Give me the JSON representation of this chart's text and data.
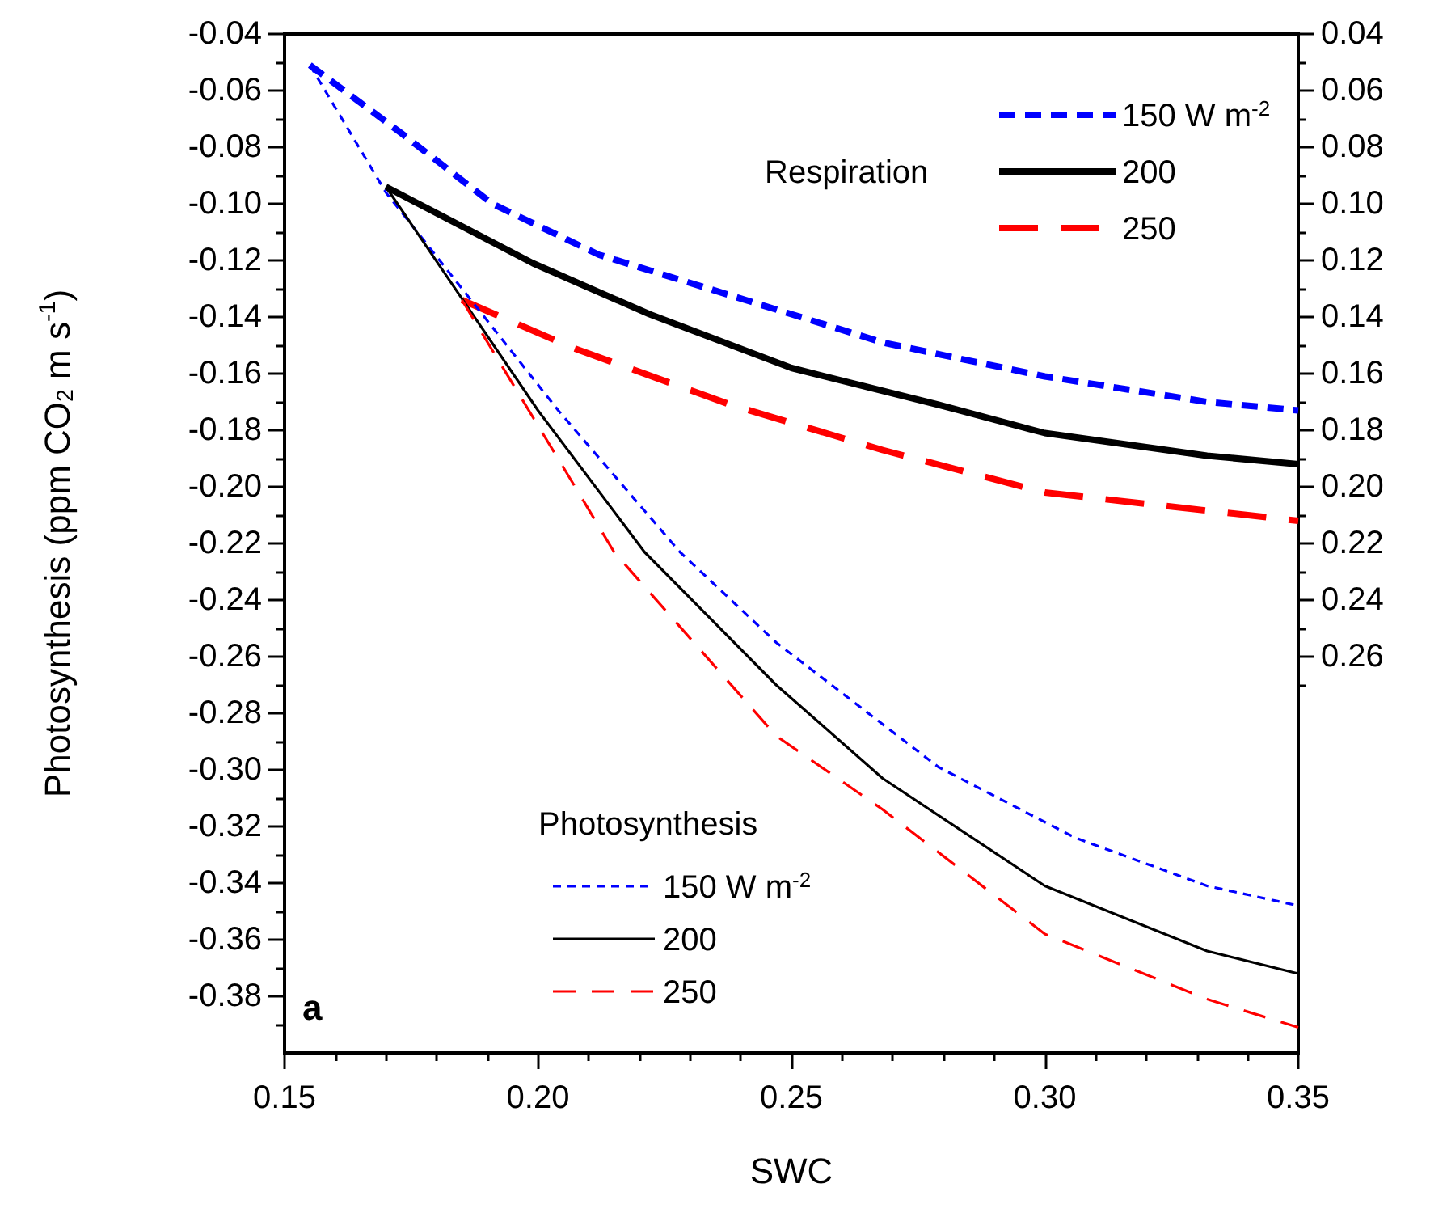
{
  "chart_data": {
    "type": "line",
    "xlabel": "SWC",
    "ylabel": "Photosynthesis (ppm CO$_{2}$ m s$^{-1}$)",
    "legend": "right",
    "marker": "none",
    "xlim": [
      0.15,
      0.35
    ],
    "xticks": [
      {
        "value": 0.15,
        "label": "0.15"
      },
      {
        "value": 0.16,
        "label": null
      },
      {
        "value": 0.17,
        "label": null
      },
      {
        "value": 0.18,
        "label": null
      },
      {
        "value": 0.19,
        "label": null
      },
      {
        "value": 0.2,
        "label": "0.20"
      },
      {
        "value": 0.21,
        "label": null
      },
      {
        "value": 0.22,
        "label": null
      },
      {
        "value": 0.23,
        "label": null
      },
      {
        "value": 0.24,
        "label": null
      },
      {
        "value": 0.25,
        "label": "0.25"
      },
      {
        "value": 0.26,
        "label": null
      },
      {
        "value": 0.27,
        "label": null
      },
      {
        "value": 0.28,
        "label": null
      },
      {
        "value": 0.29,
        "label": null
      },
      {
        "value": 0.3,
        "label": "0.30"
      },
      {
        "value": 0.31,
        "label": null
      },
      {
        "value": 0.32,
        "label": null
      },
      {
        "value": 0.33,
        "label": null
      },
      {
        "value": 0.34,
        "label": null
      },
      {
        "value": 0.35,
        "label": "0.35"
      }
    ],
    "ylim": [
      -0.4,
      -0.04
    ],
    "yticks": [
      {
        "value": -0.04,
        "label": "-0.04"
      },
      {
        "value": -0.05,
        "label": null
      },
      {
        "value": -0.06,
        "label": "-0.06"
      },
      {
        "value": -0.07,
        "label": null
      },
      {
        "value": -0.08,
        "label": "-0.08"
      },
      {
        "value": -0.09,
        "label": null
      },
      {
        "value": -0.1,
        "label": "-0.10"
      },
      {
        "value": -0.11,
        "label": null
      },
      {
        "value": -0.12,
        "label": "-0.12"
      },
      {
        "value": -0.13,
        "label": null
      },
      {
        "value": -0.14,
        "label": "-0.14"
      },
      {
        "value": -0.15,
        "label": null
      },
      {
        "value": -0.16,
        "label": "-0.16"
      },
      {
        "value": -0.17,
        "label": null
      },
      {
        "value": -0.18,
        "label": "-0.18"
      },
      {
        "value": -0.19,
        "label": null
      },
      {
        "value": -0.2,
        "label": "-0.20"
      },
      {
        "value": -0.21,
        "label": null
      },
      {
        "value": -0.22,
        "label": "-0.22"
      },
      {
        "value": -0.23,
        "label": null
      },
      {
        "value": -0.24,
        "label": "-0.24"
      },
      {
        "value": -0.25,
        "label": null
      },
      {
        "value": -0.26,
        "label": "-0.26"
      },
      {
        "value": -0.27,
        "label": null
      },
      {
        "value": -0.28,
        "label": "-0.28"
      },
      {
        "value": -0.29,
        "label": null
      },
      {
        "value": -0.3,
        "label": "-0.30"
      },
      {
        "value": -0.31,
        "label": null
      },
      {
        "value": -0.32,
        "label": "-0.32"
      },
      {
        "value": -0.33,
        "label": null
      },
      {
        "value": -0.34,
        "label": "-0.34"
      },
      {
        "value": -0.35,
        "label": null
      },
      {
        "value": -0.36,
        "label": "-0.36"
      },
      {
        "value": -0.37,
        "label": null
      },
      {
        "value": -0.38,
        "label": "-0.38"
      },
      {
        "value": -0.39,
        "label": null
      }
    ],
    "y2lim": [
      0.4,
      0.04
    ],
    "y2ticks": [
      {
        "value": 0.04,
        "label": "0.04"
      },
      {
        "value": 0.05,
        "label": null
      },
      {
        "value": 0.06,
        "label": "0.06"
      },
      {
        "value": 0.07,
        "label": null
      },
      {
        "value": 0.08,
        "label": "0.08"
      },
      {
        "value": 0.09,
        "label": null
      },
      {
        "value": 0.1,
        "label": "0.10"
      },
      {
        "value": 0.11,
        "label": null
      },
      {
        "value": 0.12,
        "label": "0.12"
      },
      {
        "value": 0.13,
        "label": null
      },
      {
        "value": 0.14,
        "label": "0.14"
      },
      {
        "value": 0.15,
        "label": null
      },
      {
        "value": 0.16,
        "label": "0.16"
      },
      {
        "value": 0.17,
        "label": null
      },
      {
        "value": 0.18,
        "label": "0.18"
      },
      {
        "value": 0.19,
        "label": null
      },
      {
        "value": 0.2,
        "label": "0.20"
      },
      {
        "value": 0.21,
        "label": null
      },
      {
        "value": 0.22,
        "label": "0.22"
      },
      {
        "value": 0.23,
        "label": null
      },
      {
        "value": 0.24,
        "label": "0.24"
      },
      {
        "value": 0.25,
        "label": null
      },
      {
        "value": 0.26,
        "label": "0.26"
      },
      {
        "value": 0.27,
        "label": null
      }
    ],
    "annotations": [
      "Respiration",
      "Photosynthesis",
      "a"
    ],
    "series": [
      {
        "name": "150 W m$^{-2}$",
        "color": "#0000ff",
        "axis": "y2",
        "line_style": "dashed",
        "x": [
          0.155,
          0.173,
          0.191,
          0.212,
          0.25,
          0.268,
          0.3,
          0.332,
          0.35
        ],
        "values": [
          0.051,
          0.075,
          0.1,
          0.118,
          0.139,
          0.149,
          0.161,
          0.17,
          0.173
        ]
      },
      {
        "name": "200",
        "color": "#000000",
        "axis": "y2",
        "line_style": "solid",
        "x": [
          0.17,
          0.199,
          0.222,
          0.25,
          0.279,
          0.3,
          0.332,
          0.35
        ],
        "values": [
          0.094,
          0.121,
          0.139,
          0.158,
          0.171,
          0.181,
          0.189,
          0.192
        ]
      },
      {
        "name": "250",
        "color": "#ff0000",
        "axis": "y2",
        "line_style": "dashed",
        "x": [
          0.185,
          0.207,
          0.238,
          0.268,
          0.3,
          0.35
        ],
        "values": [
          0.134,
          0.151,
          0.171,
          0.187,
          0.202,
          0.212
        ]
      },
      {
        "name": "150 W m$^{-2}$",
        "color": "#0000ff",
        "axis": "y",
        "line_style": "dashed",
        "x": [
          0.155,
          0.17,
          0.204,
          0.228,
          0.247,
          0.279,
          0.306,
          0.332,
          0.35
        ],
        "values": [
          -0.051,
          -0.096,
          -0.173,
          -0.223,
          -0.255,
          -0.299,
          -0.324,
          -0.341,
          -0.348
        ]
      },
      {
        "name": "200",
        "color": "#000000",
        "axis": "y",
        "line_style": "solid",
        "x": [
          0.17,
          0.2,
          0.221,
          0.247,
          0.268,
          0.3,
          0.332,
          0.35
        ],
        "values": [
          -0.094,
          -0.173,
          -0.223,
          -0.27,
          -0.303,
          -0.341,
          -0.364,
          -0.372
        ]
      },
      {
        "name": "250",
        "color": "#ff0000",
        "axis": "y",
        "line_style": "dashed",
        "x": [
          0.185,
          0.208,
          0.215,
          0.247,
          0.268,
          0.3,
          0.332,
          0.35
        ],
        "values": [
          -0.134,
          -0.202,
          -0.223,
          -0.288,
          -0.314,
          -0.358,
          -0.381,
          -0.391
        ]
      }
    ]
  }
}
